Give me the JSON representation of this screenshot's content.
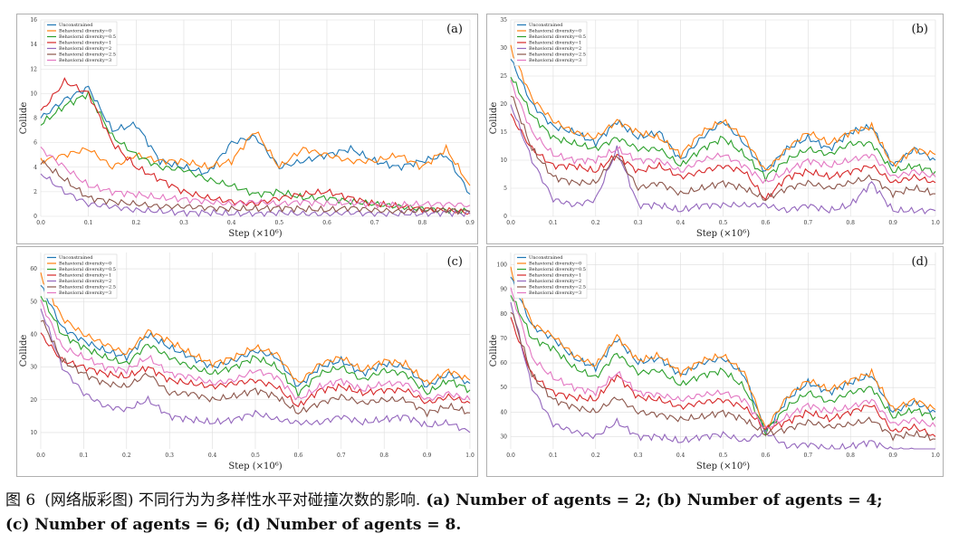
{
  "legend": [
    "Unconstrained",
    "Behavioral diversity=0",
    "Behavioral diversity=0.5",
    "Behavioral diversity=1",
    "Behavioral diversity=2",
    "Behavioral diversity=2.5",
    "Behavioral diversity=3"
  ],
  "colors": [
    "#1f77b4",
    "#ff7f0e",
    "#2ca02c",
    "#d62728",
    "#9467bd",
    "#8c564b",
    "#e377c2"
  ],
  "caption": {
    "label": "图 6",
    "title": "(网络版彩图) 不同行为为多样性水平对碰撞次数的影响.",
    "line1": "(a) Number of agents = 2; (b) Number of agents = 4;",
    "line2": "(c) Number of agents = 6; (d) Number of agents = 8."
  },
  "chart_data": [
    {
      "panel": "(a)",
      "type": "line",
      "xlabel": "Step (×10⁶)",
      "ylabel": "Collide",
      "xlim": [
        0.0,
        0.9
      ],
      "ylim": [
        0,
        16
      ],
      "xticks": [
        "0.0",
        "0.1",
        "0.2",
        "0.3",
        "0.4",
        "0.5",
        "0.6",
        "0.7",
        "0.8",
        "0.9"
      ],
      "yticks": [
        "0",
        "2",
        "4",
        "6",
        "8",
        "10",
        "12",
        "14",
        "16"
      ],
      "x": [
        0.0,
        0.05,
        0.1,
        0.15,
        0.2,
        0.25,
        0.3,
        0.35,
        0.4,
        0.45,
        0.5,
        0.55,
        0.6,
        0.65,
        0.7,
        0.75,
        0.8,
        0.85,
        0.9
      ],
      "series": [
        {
          "name": "Unconstrained",
          "values": [
            8.0,
            9.5,
            10.5,
            7.0,
            7.5,
            4.5,
            4.0,
            3.5,
            6.0,
            6.5,
            4.0,
            4.5,
            5.0,
            5.5,
            4.5,
            4.0,
            4.5,
            5.0,
            1.8
          ]
        },
        {
          "name": "Behavioral diversity=0",
          "values": [
            4.5,
            5.0,
            5.5,
            4.0,
            5.0,
            4.5,
            4.5,
            4.0,
            4.5,
            7.0,
            4.0,
            5.5,
            5.0,
            4.5,
            4.5,
            5.0,
            4.0,
            5.5,
            2.5
          ]
        },
        {
          "name": "Behavioral diversity=0.5",
          "values": [
            7.5,
            9.0,
            10.0,
            6.5,
            5.0,
            4.0,
            3.8,
            3.0,
            2.5,
            1.8,
            2.0,
            1.5,
            1.5,
            1.2,
            1.0,
            0.8,
            0.6,
            0.5,
            0.4
          ]
        },
        {
          "name": "Behavioral diversity=1",
          "values": [
            8.5,
            11.0,
            10.0,
            6.0,
            4.0,
            3.0,
            2.0,
            1.5,
            1.2,
            1.0,
            1.5,
            1.8,
            2.0,
            1.5,
            1.0,
            0.8,
            0.6,
            0.5,
            0.3
          ]
        },
        {
          "name": "Behavioral diversity=2",
          "values": [
            3.5,
            2.0,
            1.0,
            0.8,
            0.5,
            0.4,
            0.3,
            0.3,
            0.2,
            0.2,
            0.3,
            0.2,
            0.2,
            0.3,
            0.2,
            0.2,
            0.2,
            0.3,
            0.2
          ]
        },
        {
          "name": "Behavioral diversity=2.5",
          "values": [
            4.5,
            3.0,
            1.5,
            1.2,
            1.0,
            0.8,
            0.8,
            0.7,
            0.6,
            0.6,
            0.7,
            0.6,
            0.5,
            0.7,
            0.5,
            0.4,
            0.5,
            0.5,
            0.4
          ]
        },
        {
          "name": "Behavioral diversity=3",
          "values": [
            5.5,
            4.0,
            2.5,
            2.0,
            1.8,
            1.5,
            1.4,
            1.2,
            1.0,
            1.2,
            1.0,
            1.2,
            1.0,
            1.1,
            1.0,
            0.9,
            1.0,
            1.0,
            0.9
          ]
        }
      ]
    },
    {
      "panel": "(b)",
      "type": "line",
      "xlabel": "Step (×10⁶)",
      "ylabel": "Collide",
      "xlim": [
        0.0,
        1.0
      ],
      "ylim": [
        0,
        35
      ],
      "xticks": [
        "0.0",
        "0.1",
        "0.2",
        "0.3",
        "0.4",
        "0.5",
        "0.6",
        "0.7",
        "0.8",
        "0.9",
        "1.0"
      ],
      "yticks": [
        "0",
        "5",
        "10",
        "15",
        "20",
        "25",
        "30",
        "35"
      ],
      "x": [
        0.0,
        0.05,
        0.1,
        0.15,
        0.2,
        0.25,
        0.3,
        0.35,
        0.4,
        0.45,
        0.5,
        0.55,
        0.6,
        0.65,
        0.7,
        0.75,
        0.8,
        0.85,
        0.9,
        0.95,
        1.0
      ],
      "series": [
        {
          "name": "Unconstrained",
          "values": [
            28,
            20,
            16,
            15,
            13,
            17,
            14,
            15,
            10,
            14,
            17,
            13,
            8,
            12,
            14,
            12,
            15,
            16,
            9,
            12,
            10
          ]
        },
        {
          "name": "Behavioral diversity=0",
          "values": [
            30,
            21,
            17,
            15,
            14,
            17,
            15,
            14,
            11,
            15,
            17,
            14,
            8,
            12,
            15,
            13,
            15,
            16,
            9,
            12,
            11
          ]
        },
        {
          "name": "Behavioral diversity=0.5",
          "values": [
            25,
            18,
            14,
            13,
            12,
            14,
            12,
            12,
            9,
            12,
            14,
            11,
            7,
            10,
            12,
            11,
            13,
            13,
            8,
            9,
            8
          ]
        },
        {
          "name": "Behavioral diversity=1",
          "values": [
            18,
            12,
            9,
            9,
            8,
            11,
            8,
            9,
            7,
            8,
            9,
            8,
            3,
            7,
            8,
            7,
            8,
            9,
            6,
            7,
            6
          ]
        },
        {
          "name": "Behavioral diversity=2",
          "values": [
            20,
            10,
            3,
            2,
            3,
            12,
            2,
            2,
            1,
            2,
            2,
            2,
            2,
            1,
            2,
            1,
            2,
            6,
            1,
            1,
            1
          ]
        },
        {
          "name": "Behavioral diversity=2.5",
          "values": [
            22,
            12,
            7,
            6,
            6,
            11,
            5,
            6,
            4,
            5,
            6,
            5,
            3,
            5,
            6,
            5,
            6,
            7,
            4,
            5,
            4
          ]
        },
        {
          "name": "Behavioral diversity=3",
          "values": [
            24,
            15,
            11,
            10,
            10,
            12,
            10,
            10,
            8,
            10,
            11,
            9,
            6,
            8,
            10,
            9,
            10,
            11,
            7,
            8,
            7
          ]
        }
      ]
    },
    {
      "panel": "(c)",
      "type": "line",
      "xlabel": "Step (×10⁶)",
      "ylabel": "Collide",
      "xlim": [
        0.0,
        1.0
      ],
      "ylim": [
        5,
        65
      ],
      "xticks": [
        "0.0",
        "0.1",
        "0.2",
        "0.3",
        "0.4",
        "0.5",
        "0.6",
        "0.7",
        "0.8",
        "0.9",
        "1.0"
      ],
      "yticks": [
        "10",
        "20",
        "30",
        "40",
        "50",
        "60"
      ],
      "x": [
        0.0,
        0.05,
        0.1,
        0.15,
        0.2,
        0.25,
        0.3,
        0.35,
        0.4,
        0.45,
        0.5,
        0.55,
        0.6,
        0.65,
        0.7,
        0.75,
        0.8,
        0.85,
        0.9,
        0.95,
        1.0
      ],
      "series": [
        {
          "name": "Unconstrained",
          "values": [
            55,
            42,
            38,
            35,
            33,
            40,
            36,
            33,
            30,
            32,
            35,
            33,
            24,
            30,
            32,
            28,
            31,
            30,
            24,
            28,
            25
          ]
        },
        {
          "name": "Behavioral diversity=0",
          "values": [
            58,
            45,
            40,
            37,
            34,
            41,
            38,
            34,
            31,
            33,
            36,
            34,
            25,
            31,
            33,
            29,
            32,
            31,
            25,
            29,
            26
          ]
        },
        {
          "name": "Behavioral diversity=0.5",
          "values": [
            52,
            40,
            36,
            33,
            31,
            37,
            33,
            30,
            28,
            30,
            33,
            30,
            22,
            28,
            30,
            26,
            29,
            28,
            22,
            26,
            23
          ]
        },
        {
          "name": "Behavioral diversity=1",
          "values": [
            40,
            32,
            30,
            28,
            27,
            30,
            26,
            25,
            24,
            25,
            26,
            24,
            18,
            23,
            24,
            22,
            23,
            23,
            19,
            21,
            19
          ]
        },
        {
          "name": "Behavioral diversity=2",
          "values": [
            48,
            30,
            22,
            18,
            17,
            20,
            15,
            14,
            13,
            14,
            16,
            14,
            13,
            13,
            15,
            13,
            14,
            15,
            12,
            13,
            10
          ]
        },
        {
          "name": "Behavioral diversity=2.5",
          "values": [
            45,
            32,
            28,
            25,
            24,
            28,
            22,
            22,
            20,
            21,
            23,
            21,
            16,
            19,
            21,
            19,
            20,
            20,
            16,
            18,
            16
          ]
        },
        {
          "name": "Behavioral diversity=3",
          "values": [
            50,
            36,
            33,
            30,
            29,
            33,
            28,
            27,
            25,
            26,
            29,
            27,
            20,
            24,
            26,
            23,
            25,
            25,
            20,
            22,
            20
          ]
        }
      ]
    },
    {
      "panel": "(d)",
      "type": "line",
      "xlabel": "Step (×10⁶)",
      "ylabel": "Collide",
      "xlim": [
        0.0,
        1.0
      ],
      "ylim": [
        25,
        105
      ],
      "xticks": [
        "0.0",
        "0.1",
        "0.2",
        "0.3",
        "0.4",
        "0.5",
        "0.6",
        "0.7",
        "0.8",
        "0.9",
        "1.0"
      ],
      "yticks": [
        "30",
        "40",
        "50",
        "60",
        "70",
        "80",
        "90",
        "100"
      ],
      "x": [
        0.0,
        0.05,
        0.1,
        0.15,
        0.2,
        0.25,
        0.3,
        0.35,
        0.4,
        0.45,
        0.5,
        0.55,
        0.6,
        0.65,
        0.7,
        0.75,
        0.8,
        0.85,
        0.9,
        0.95,
        1.0
      ],
      "series": [
        {
          "name": "Unconstrained",
          "values": [
            95,
            75,
            70,
            62,
            58,
            70,
            60,
            62,
            55,
            60,
            62,
            55,
            32,
            45,
            52,
            48,
            52,
            55,
            40,
            44,
            40
          ]
        },
        {
          "name": "Behavioral diversity=0",
          "values": [
            98,
            76,
            71,
            63,
            59,
            71,
            61,
            63,
            56,
            61,
            63,
            56,
            33,
            46,
            53,
            49,
            53,
            56,
            41,
            45,
            41
          ]
        },
        {
          "name": "Behavioral diversity=0.5",
          "values": [
            88,
            70,
            66,
            58,
            54,
            64,
            56,
            57,
            51,
            55,
            57,
            50,
            32,
            42,
            48,
            44,
            48,
            50,
            38,
            41,
            38
          ]
        },
        {
          "name": "Behavioral diversity=1",
          "values": [
            78,
            55,
            48,
            46,
            45,
            55,
            46,
            45,
            42,
            44,
            45,
            42,
            33,
            36,
            40,
            37,
            40,
            43,
            32,
            34,
            30
          ]
        },
        {
          "name": "Behavioral diversity=2",
          "values": [
            85,
            50,
            35,
            32,
            30,
            36,
            30,
            30,
            28,
            30,
            31,
            28,
            32,
            26,
            27,
            25,
            26,
            28,
            24,
            24,
            23
          ]
        },
        {
          "name": "Behavioral diversity=2.5",
          "values": [
            82,
            55,
            45,
            42,
            40,
            46,
            40,
            39,
            37,
            38,
            40,
            37,
            31,
            33,
            36,
            34,
            35,
            37,
            30,
            31,
            29
          ]
        },
        {
          "name": "Behavioral diversity=3",
          "values": [
            90,
            62,
            54,
            50,
            48,
            56,
            48,
            47,
            45,
            47,
            48,
            45,
            33,
            38,
            43,
            40,
            42,
            45,
            35,
            37,
            34
          ]
        }
      ]
    }
  ]
}
